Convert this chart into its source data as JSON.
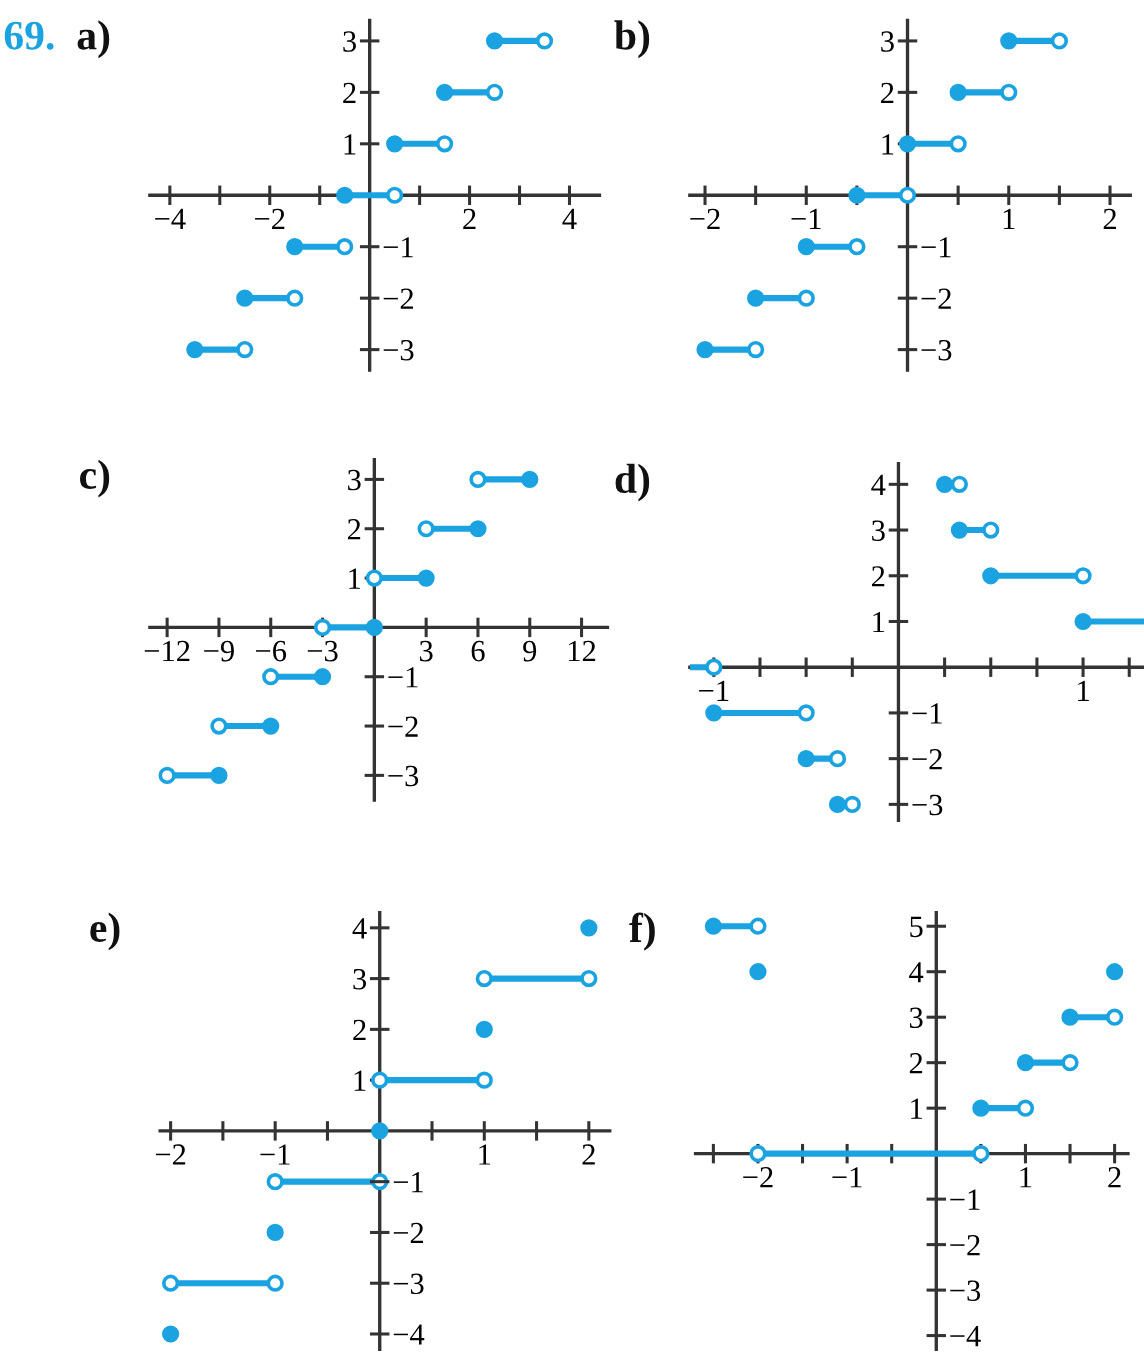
{
  "chart_data": [
    {
      "type": "line",
      "title": "a)",
      "annotations": [
        "69."
      ],
      "xlim": [
        -4.4,
        4.6
      ],
      "ylim": [
        -3.4,
        3.4
      ],
      "y2lim": [
        -3.4,
        3.4
      ],
      "xticks": [
        {
          "value": -4,
          "label": "−4"
        },
        {
          "value": -3,
          "label": null
        },
        {
          "value": -2,
          "label": "−2"
        },
        {
          "value": -1,
          "label": null
        },
        {
          "value": 1,
          "label": null
        },
        2,
        {
          "value": 3,
          "label": null
        },
        4
      ],
      "yticks": [
        1,
        2,
        3
      ],
      "y2ticks": [
        {
          "value": -3,
          "label": "−3"
        },
        {
          "value": -2,
          "label": "−2"
        },
        {
          "value": -1,
          "label": "−1"
        }
      ],
      "series": [
        {
          "type": "line",
          "marker": "none",
          "color": "#1aa3e0",
          "x": [
            -3.5,
            -2.5,
            null,
            -2.5,
            -1.5,
            null,
            -1.5,
            -0.5,
            null,
            -0.5,
            0.5,
            null,
            0.5,
            1.5,
            null,
            1.5,
            2.5,
            null,
            2.5,
            3.5
          ],
          "values": [
            -3,
            -3,
            null,
            -2,
            -2,
            null,
            -1,
            -1,
            null,
            0,
            0,
            null,
            1,
            1,
            null,
            2,
            2,
            null,
            3,
            3
          ]
        },
        {
          "type": "scatter",
          "marker": "circle",
          "color": "#1aa3e0",
          "x": [
            -3.5,
            -2.5,
            -1.5,
            -0.5,
            0.5,
            1.5,
            2.5
          ],
          "values": [
            -3,
            -2,
            -1,
            0,
            1,
            2,
            3
          ]
        },
        {
          "type": "scatter",
          "marker": "circle",
          "color": "#ffffff",
          "x": [
            -2.5,
            -1.5,
            -0.5,
            0.5,
            1.5,
            2.5,
            3.5
          ],
          "values": [
            -3,
            -2,
            -1,
            0,
            1,
            2,
            3
          ]
        }
      ]
    },
    {
      "type": "line",
      "title": "b)",
      "xlim": [
        -2.15,
        2.2
      ],
      "ylim": [
        -3.4,
        3.4
      ],
      "y2lim": [
        -3.4,
        3.4
      ],
      "xticks": [
        {
          "value": -2,
          "label": "−2"
        },
        {
          "value": -1.5,
          "label": null
        },
        {
          "value": -1,
          "label": "−1"
        },
        {
          "value": -0.5,
          "label": null
        },
        {
          "value": 0.5,
          "label": null
        },
        1,
        {
          "value": 1.5,
          "label": null
        },
        2
      ],
      "yticks": [
        1,
        2,
        3
      ],
      "y2ticks": [
        {
          "value": -3,
          "label": "−3"
        },
        {
          "value": -2,
          "label": "−2"
        },
        {
          "value": -1,
          "label": "−1"
        }
      ],
      "series": [
        {
          "type": "line",
          "marker": "none",
          "color": "#1aa3e0",
          "x": [
            -2,
            -1.5,
            null,
            -1.5,
            -1,
            null,
            -1,
            -0.5,
            null,
            -0.5,
            0,
            null,
            0,
            0.5,
            null,
            0.5,
            1,
            null,
            1,
            1.5
          ],
          "values": [
            -3,
            -3,
            null,
            -2,
            -2,
            null,
            -1,
            -1,
            null,
            0,
            0,
            null,
            1,
            1,
            null,
            2,
            2,
            null,
            3,
            3
          ]
        },
        {
          "type": "scatter",
          "marker": "circle",
          "color": "#1aa3e0",
          "x": [
            -2,
            -1.5,
            -1,
            -0.5,
            0,
            0.5,
            1
          ],
          "values": [
            -3,
            -2,
            -1,
            0,
            1,
            2,
            3
          ]
        },
        {
          "type": "scatter",
          "marker": "circle",
          "color": "#ffffff",
          "x": [
            -1.5,
            -1,
            -0.5,
            0,
            0.5,
            1,
            1.5
          ],
          "values": [
            -3,
            -2,
            -1,
            0,
            1,
            2,
            3
          ]
        }
      ]
    },
    {
      "type": "line",
      "title": "c)",
      "xlim": [
        -13,
        13.5
      ],
      "ylim": [
        -3.5,
        3.4
      ],
      "y2lim": [
        -3.5,
        3.4
      ],
      "xticks": [
        {
          "value": -12,
          "label": "−12"
        },
        {
          "value": -9,
          "label": "−9"
        },
        {
          "value": -6,
          "label": "−6"
        },
        {
          "value": -3,
          "label": "−3"
        },
        3,
        6,
        9,
        12
      ],
      "yticks": [
        1,
        2,
        3
      ],
      "y2ticks": [
        {
          "value": -3,
          "label": "−3"
        },
        {
          "value": -2,
          "label": "−2"
        },
        {
          "value": -1,
          "label": "−1"
        }
      ],
      "series": [
        {
          "type": "line",
          "marker": "none",
          "color": "#1aa3e0",
          "x": [
            -12,
            -9,
            null,
            -9,
            -6,
            null,
            -6,
            -3,
            null,
            -3,
            0,
            null,
            0,
            3,
            null,
            3,
            6,
            null,
            6,
            9
          ],
          "values": [
            -3,
            -3,
            null,
            -2,
            -2,
            null,
            -1,
            -1,
            null,
            0,
            0,
            null,
            1,
            1,
            null,
            2,
            2,
            null,
            3,
            3
          ]
        },
        {
          "type": "scatter",
          "marker": "circle",
          "color": "#1aa3e0",
          "x": [
            -9,
            -6,
            -3,
            0,
            3,
            6,
            9
          ],
          "values": [
            -3,
            -2,
            -1,
            0,
            1,
            2,
            3
          ]
        },
        {
          "type": "scatter",
          "marker": "circle",
          "color": "#ffffff",
          "x": [
            -12,
            -9,
            -6,
            -3,
            0,
            3,
            6
          ],
          "values": [
            -3,
            -2,
            -1,
            0,
            1,
            2,
            3
          ]
        }
      ]
    },
    {
      "type": "line",
      "title": "d)",
      "xlim": [
        -1.13,
        1.33
      ],
      "ylim": [
        -3.35,
        4.45
      ],
      "y2lim": [
        -3.35,
        4.45
      ],
      "xticks": [
        {
          "value": -1,
          "label": "−1"
        },
        {
          "value": -0.75,
          "label": null
        },
        {
          "value": -0.5,
          "label": null
        },
        {
          "value": -0.25,
          "label": null
        },
        {
          "value": 0.25,
          "label": null
        },
        {
          "value": 0.5,
          "label": null
        },
        {
          "value": 0.75,
          "label": null
        },
        1,
        {
          "value": 1.25,
          "label": null
        }
      ],
      "yticks": [
        1,
        2,
        3,
        4
      ],
      "y2ticks": [
        {
          "value": -3,
          "label": "−3"
        },
        {
          "value": -2,
          "label": "−2"
        },
        {
          "value": -1,
          "label": "−1"
        }
      ],
      "series": [
        {
          "type": "line",
          "marker": "none",
          "color": "#1aa3e0",
          "x": [
            -1.13,
            -1,
            null,
            -1,
            -0.5,
            null,
            -0.5,
            -0.33,
            null,
            -0.33,
            -0.25,
            null,
            0.25,
            0.33,
            null,
            0.33,
            0.5,
            null,
            0.5,
            1,
            null,
            1,
            1.33
          ],
          "values": [
            0,
            0,
            null,
            -1,
            -1,
            null,
            -2,
            -2,
            null,
            -3,
            -3,
            null,
            4,
            4,
            null,
            3,
            3,
            null,
            2,
            2,
            null,
            1,
            1
          ]
        },
        {
          "type": "scatter",
          "marker": "circle",
          "color": "#1aa3e0",
          "x": [
            -1,
            -0.5,
            -0.33,
            0.25,
            0.33,
            0.5,
            1
          ],
          "values": [
            -1,
            -2,
            -3,
            4,
            3,
            2,
            1
          ]
        },
        {
          "type": "scatter",
          "marker": "circle",
          "color": "#ffffff",
          "x": [
            -1,
            -0.5,
            -0.33,
            -0.25,
            0.33,
            0.5,
            1
          ],
          "values": [
            0,
            -1,
            -2,
            -3,
            4,
            3,
            2
          ]
        }
      ]
    },
    {
      "type": "line",
      "title": "e)",
      "xlim": [
        -2.1,
        2.2
      ],
      "ylim": [
        -4.3,
        4.3
      ],
      "y2lim": [
        -4.3,
        4.3
      ],
      "xticks": [
        {
          "value": -2,
          "label": "−2"
        },
        {
          "value": -1.5,
          "label": null
        },
        {
          "value": -1,
          "label": "−1"
        },
        {
          "value": -0.5,
          "label": null
        },
        {
          "value": 0.5,
          "label": null
        },
        1,
        {
          "value": 1.5,
          "label": null
        },
        2
      ],
      "yticks": [
        1,
        2,
        3,
        4
      ],
      "y2ticks": [
        {
          "value": -4,
          "label": "−4"
        },
        {
          "value": -3,
          "label": "−3"
        },
        {
          "value": -2,
          "label": "−2"
        },
        {
          "value": -1,
          "label": "−1"
        }
      ],
      "series": [
        {
          "type": "line",
          "marker": "none",
          "color": "#1aa3e0",
          "x": [
            -2,
            -1,
            null,
            -1,
            0,
            null,
            0,
            1,
            null,
            1,
            2
          ],
          "values": [
            -3,
            -3,
            null,
            -1,
            -1,
            null,
            1,
            1,
            null,
            3,
            3
          ]
        },
        {
          "type": "scatter",
          "marker": "circle",
          "color": "#1aa3e0",
          "x": [
            -2,
            -1,
            0,
            1,
            2
          ],
          "values": [
            -4,
            -2,
            0,
            2,
            4
          ]
        },
        {
          "type": "scatter",
          "marker": "circle",
          "color": "#ffffff",
          "x": [
            -2,
            -1,
            -1,
            0,
            0,
            1,
            1,
            2
          ],
          "values": [
            -3,
            -3,
            -1,
            -1,
            1,
            1,
            3,
            3
          ]
        }
      ]
    },
    {
      "type": "line",
      "title": "f)",
      "xlim": [
        -2.7,
        2.15
      ],
      "ylim": [
        -4.3,
        5.3
      ],
      "y2lim": [
        -4.3,
        5.3
      ],
      "xticks": [
        {
          "value": -2.5,
          "label": null
        },
        {
          "value": -2,
          "label": "−2"
        },
        {
          "value": -1.5,
          "label": null
        },
        {
          "value": -1,
          "label": "−1"
        },
        {
          "value": -0.5,
          "label": null
        },
        {
          "value": 0.5,
          "label": null
        },
        1,
        {
          "value": 1.5,
          "label": null
        },
        2
      ],
      "yticks": [
        1,
        2,
        3,
        4,
        5
      ],
      "y2ticks": [
        {
          "value": -4,
          "label": "−4"
        },
        {
          "value": -3,
          "label": "−3"
        },
        {
          "value": -2,
          "label": "−2"
        },
        {
          "value": -1,
          "label": "−1"
        }
      ],
      "series": [
        {
          "type": "line",
          "marker": "none",
          "color": "#1aa3e0",
          "x": [
            -2.5,
            -2,
            null,
            -2,
            0.5,
            null,
            0.5,
            1,
            null,
            1,
            1.5,
            null,
            1.5,
            2
          ],
          "values": [
            5,
            5,
            null,
            0,
            0,
            null,
            1,
            1,
            null,
            2,
            2,
            null,
            3,
            3
          ]
        },
        {
          "type": "scatter",
          "marker": "circle",
          "color": "#1aa3e0",
          "x": [
            -2.5,
            -2,
            0.5,
            1,
            1.5,
            2
          ],
          "values": [
            5,
            4,
            1,
            2,
            3,
            4
          ]
        },
        {
          "type": "scatter",
          "marker": "circle",
          "color": "#ffffff",
          "x": [
            -2,
            -2,
            0.5,
            1,
            1.5,
            2
          ],
          "values": [
            5,
            0,
            0,
            1,
            2,
            3
          ]
        }
      ]
    }
  ]
}
